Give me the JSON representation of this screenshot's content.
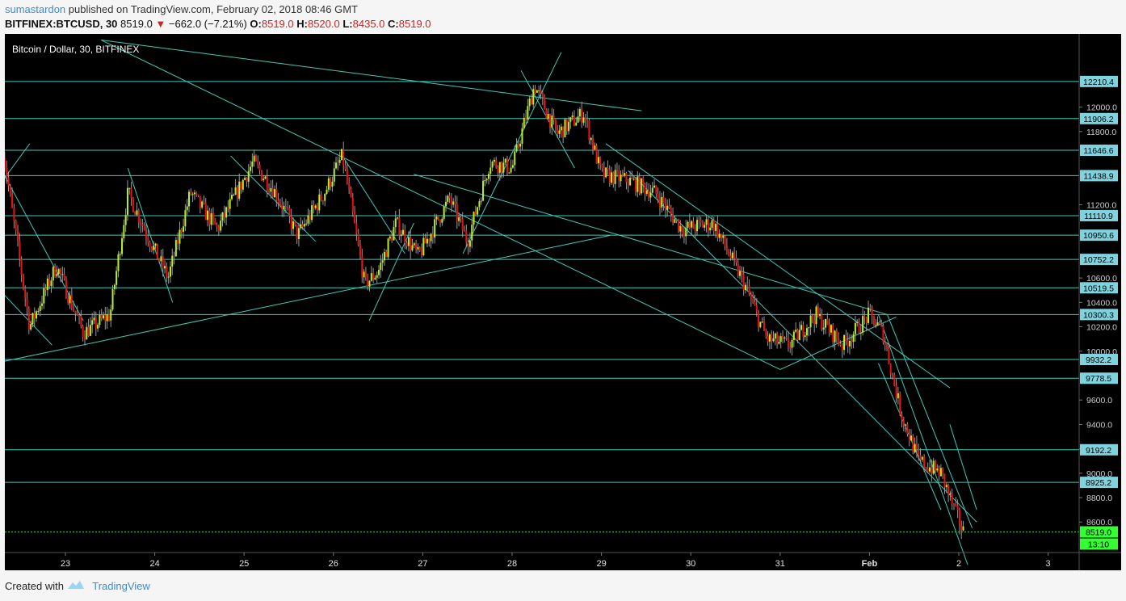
{
  "header": {
    "author": "sumastardon",
    "published": "published on TradingView.com, February 02, 2018 08:46 GMT",
    "symbol": "BITFINEX:BTCUSD, 30",
    "last": "8519.0",
    "change": "−662.0 (−7.21%)",
    "o_label": "O:",
    "o": "8519.0",
    "h_label": "H:",
    "h": "8520.0",
    "l_label": "L:",
    "l": "8435.0",
    "c_label": "C:",
    "c": "8519.0"
  },
  "footer": {
    "created_with": "Created with",
    "brand": "TradingView"
  },
  "colors": {
    "up": "#b9f024",
    "down": "#ee1111",
    "lines": "#44c8b8",
    "label_bg": "#7fd3df",
    "last_bg": "#33ff33"
  },
  "chart_data": {
    "type": "candlestick",
    "title": "Bitcoin / Dollar, 30, BITFINEX",
    "x_ticks": [
      "23",
      "24",
      "25",
      "26",
      "27",
      "28",
      "29",
      "30",
      "31",
      "Feb",
      "2",
      "3"
    ],
    "y_ticks": [
      "12000.0",
      "11800.0",
      "11200.0",
      "10600.0",
      "10400.0",
      "10200.0",
      "10000.0",
      "9600.0",
      "9400.0",
      "9200.0",
      "9000.0",
      "8800.0",
      "8600.0"
    ],
    "ylim": [
      8350,
      12600
    ],
    "horizontal_levels": [
      "12210.4",
      "11906.2",
      "11646.6",
      "11438.9",
      "11110.9",
      "10950.6",
      "10752.2",
      "10519.5",
      "10300.3",
      "9932.2",
      "9778.5",
      "9192.2",
      "8925.2",
      "8519.0"
    ],
    "last_price": "8519.0",
    "countdown": "13:10",
    "close_series": [
      [
        22.3,
        11650
      ],
      [
        22.6,
        10200
      ],
      [
        22.9,
        10700
      ],
      [
        23.2,
        10150
      ],
      [
        23.5,
        10300
      ],
      [
        23.7,
        11300
      ],
      [
        23.95,
        10900
      ],
      [
        24.15,
        10600
      ],
      [
        24.4,
        11300
      ],
      [
        24.7,
        11000
      ],
      [
        25.1,
        11550
      ],
      [
        25.35,
        11300
      ],
      [
        25.6,
        10950
      ],
      [
        25.9,
        11300
      ],
      [
        26.1,
        11600
      ],
      [
        26.35,
        10550
      ],
      [
        26.5,
        10650
      ],
      [
        26.7,
        11050
      ],
      [
        26.95,
        10780
      ],
      [
        27.3,
        11250
      ],
      [
        27.5,
        10900
      ],
      [
        27.75,
        11550
      ],
      [
        28.0,
        11500
      ],
      [
        28.25,
        12180
      ],
      [
        28.5,
        11780
      ],
      [
        28.8,
        11950
      ],
      [
        29.0,
        11450
      ],
      [
        29.3,
        11400
      ],
      [
        29.6,
        11300
      ],
      [
        29.9,
        11000
      ],
      [
        30.25,
        11050
      ],
      [
        30.6,
        10550
      ],
      [
        30.85,
        10100
      ],
      [
        31.1,
        10050
      ],
      [
        31.4,
        10300
      ],
      [
        31.7,
        10050
      ],
      [
        32.0,
        10300
      ],
      [
        32.15,
        10150
      ],
      [
        32.35,
        9500
      ],
      [
        32.55,
        9100
      ],
      [
        32.8,
        9000
      ],
      [
        32.95,
        8700
      ],
      [
        33.05,
        8519
      ]
    ],
    "trend_lines": [
      [
        [
          22.2,
          9900
        ],
        [
          29.1,
          10950
        ]
      ],
      [
        [
          23.4,
          12550
        ],
        [
          29.45,
          11970
        ]
      ],
      [
        [
          23.4,
          12550
        ],
        [
          31.0,
          9850
        ]
      ],
      [
        [
          29.05,
          11700
        ],
        [
          32.9,
          9700
        ]
      ],
      [
        [
          29.3,
          11480
        ],
        [
          33.2,
          8600
        ]
      ],
      [
        [
          27.45,
          10800
        ],
        [
          28.55,
          12450
        ]
      ],
      [
        [
          26.9,
          11450
        ],
        [
          32.2,
          10300
        ]
      ],
      [
        [
          22.2,
          10550
        ],
        [
          22.85,
          10050
        ]
      ],
      [
        [
          22.2,
          11300
        ],
        [
          22.6,
          11700
        ]
      ],
      [
        [
          22.2,
          11600
        ],
        [
          23.2,
          10250
        ]
      ],
      [
        [
          23.7,
          11500
        ],
        [
          24.2,
          10400
        ]
      ],
      [
        [
          24.85,
          11600
        ],
        [
          25.8,
          10900
        ]
      ],
      [
        [
          26.1,
          11600
        ],
        [
          26.8,
          10800
        ]
      ],
      [
        [
          26.4,
          10250
        ],
        [
          26.9,
          11050
        ]
      ],
      [
        [
          28.1,
          12300
        ],
        [
          28.7,
          11500
        ]
      ],
      [
        [
          31.0,
          9850
        ],
        [
          32.3,
          10280
        ]
      ],
      [
        [
          32.1,
          9900
        ],
        [
          32.8,
          8700
        ]
      ],
      [
        [
          32.1,
          10300
        ],
        [
          33.1,
          8250
        ]
      ],
      [
        [
          32.2,
          10300
        ],
        [
          33.15,
          8550
        ]
      ],
      [
        [
          32.9,
          9400
        ],
        [
          33.2,
          8700
        ]
      ]
    ]
  }
}
